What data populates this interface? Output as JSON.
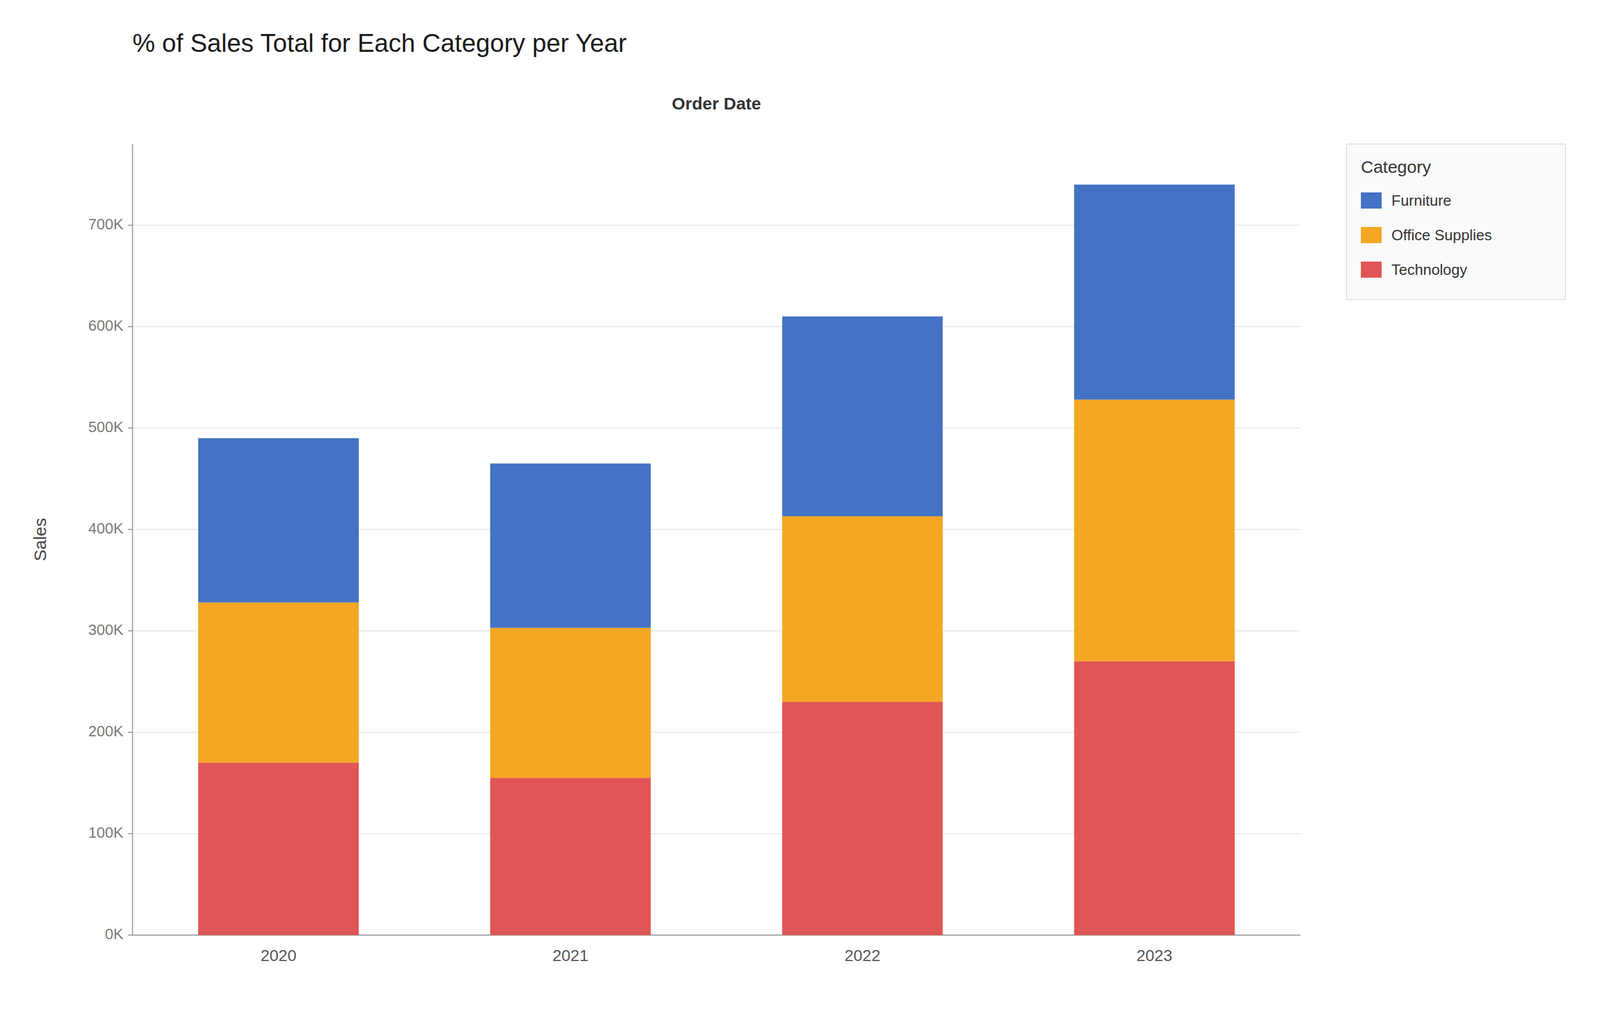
{
  "chart_data": {
    "type": "bar",
    "stacked": true,
    "title": "% of Sales Total for Each Category per Year",
    "subtitle": "Order Date",
    "ylabel": "Sales",
    "legend_title": "Category",
    "categories": [
      "2020",
      "2021",
      "2022",
      "2023"
    ],
    "series": [
      {
        "name": "Technology",
        "color": "#E05555",
        "values": [
          170000,
          155000,
          230000,
          270000
        ]
      },
      {
        "name": "Office Supplies",
        "color": "#F5A623",
        "values": [
          158000,
          148000,
          183000,
          258000
        ]
      },
      {
        "name": "Furniture",
        "color": "#4472C4",
        "values": [
          162000,
          162000,
          197000,
          212000
        ]
      }
    ],
    "ylim": [
      0,
      780000
    ],
    "yticks": [
      {
        "value": 0,
        "label": "0K"
      },
      {
        "value": 100000,
        "label": "100K"
      },
      {
        "value": 200000,
        "label": "200K"
      },
      {
        "value": 300000,
        "label": "300K"
      },
      {
        "value": 400000,
        "label": "400K"
      },
      {
        "value": 500000,
        "label": "500K"
      },
      {
        "value": 600000,
        "label": "600K"
      },
      {
        "value": 700000,
        "label": "700K"
      }
    ],
    "grid": true,
    "legend": "right"
  }
}
